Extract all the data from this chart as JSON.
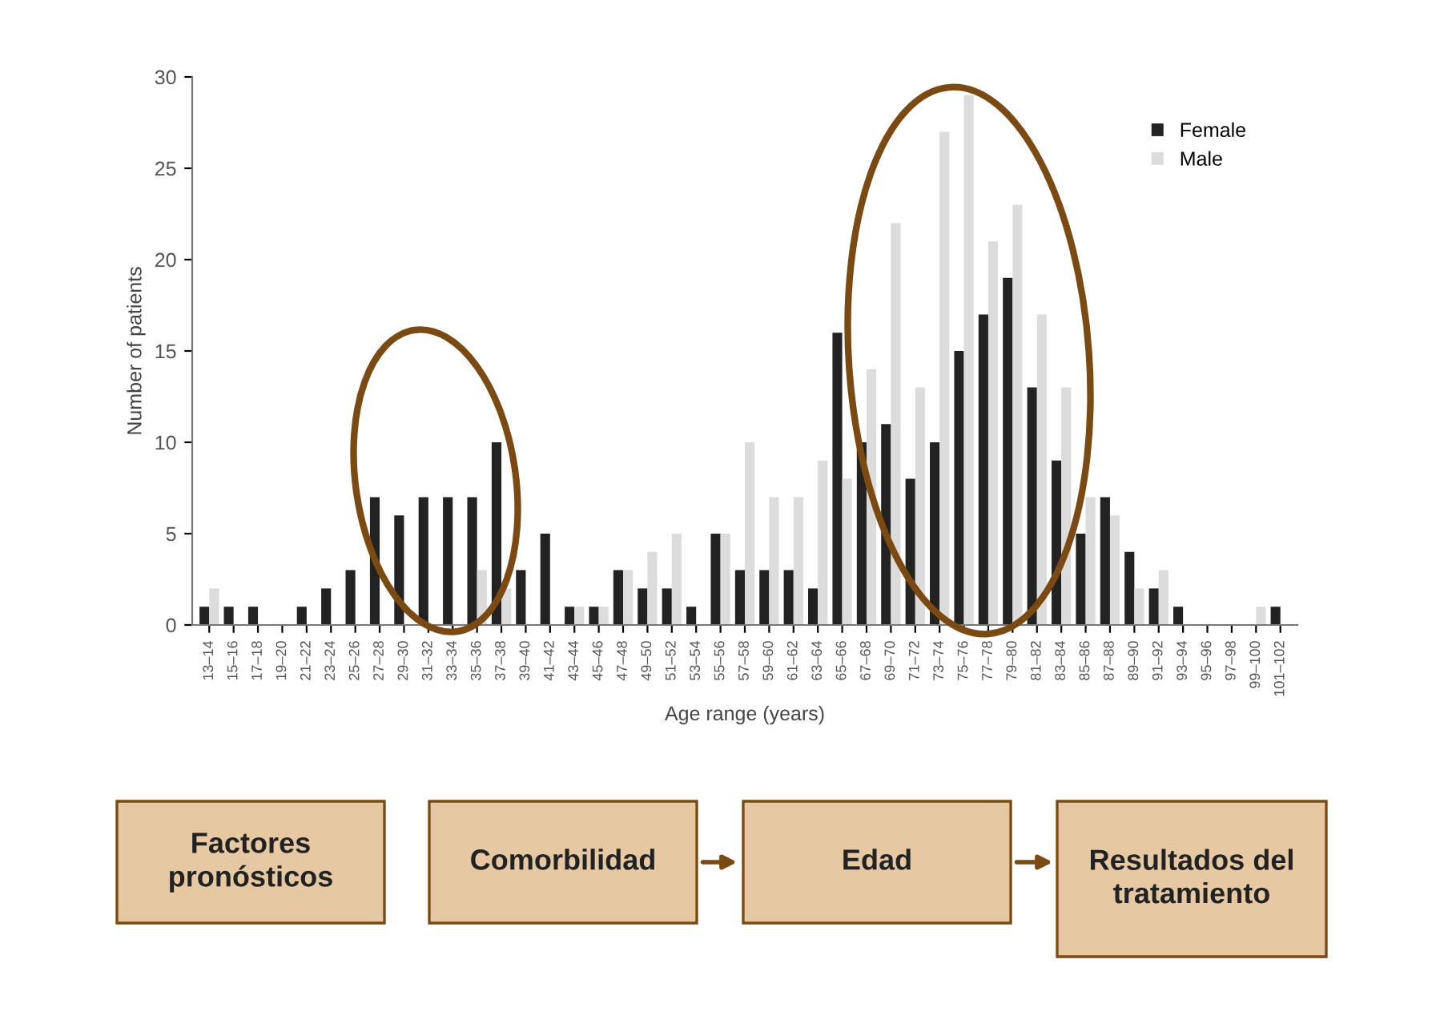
{
  "chart_data": {
    "type": "bar",
    "xlabel": "Age range (years)",
    "ylabel": "Number of patients",
    "categories": [
      "13–14",
      "15–16",
      "17–18",
      "19–20",
      "21–22",
      "23–24",
      "25–26",
      "27–28",
      "29–30",
      "31–32",
      "33–34",
      "35–36",
      "37–38",
      "39–40",
      "41–42",
      "43–44",
      "45–46",
      "47–48",
      "49–50",
      "51–52",
      "53–54",
      "55–56",
      "57–58",
      "59–60",
      "61–62",
      "63–64",
      "65–66",
      "67–68",
      "69–70",
      "71–72",
      "73–74",
      "75–76",
      "77–78",
      "79–80",
      "81–82",
      "83–84",
      "85–86",
      "87–88",
      "89–90",
      "91–92",
      "93–94",
      "95–96",
      "97–98",
      "99–100",
      "101–102"
    ],
    "series": [
      {
        "name": "Female",
        "color": "#222222",
        "values": [
          1,
          1,
          1,
          0,
          1,
          2,
          3,
          7,
          6,
          7,
          7,
          7,
          10,
          3,
          5,
          1,
          1,
          3,
          2,
          2,
          1,
          5,
          3,
          3,
          3,
          2,
          16,
          10,
          11,
          8,
          10,
          15,
          17,
          19,
          13,
          9,
          5,
          7,
          4,
          2,
          1,
          0,
          0,
          0,
          1
        ]
      },
      {
        "name": "Male",
        "color": "#dcdcdc",
        "values": [
          2,
          0,
          0,
          0,
          0,
          0,
          0,
          0,
          0,
          0,
          0,
          3,
          2,
          0,
          0,
          1,
          1,
          3,
          4,
          5,
          0,
          5,
          10,
          7,
          7,
          9,
          8,
          14,
          22,
          13,
          27,
          29,
          21,
          23,
          17,
          13,
          7,
          6,
          2,
          3,
          0,
          0,
          0,
          1,
          0
        ]
      }
    ],
    "ylim": [
      0,
      30
    ],
    "yticks": [
      0,
      5,
      10,
      15,
      20,
      25,
      30
    ],
    "legend": "top right",
    "grid": false,
    "annotations": [
      "Factores pronósticos",
      "Comorbilidad",
      "Edad",
      "Resultados del tratamiento"
    ]
  }
}
